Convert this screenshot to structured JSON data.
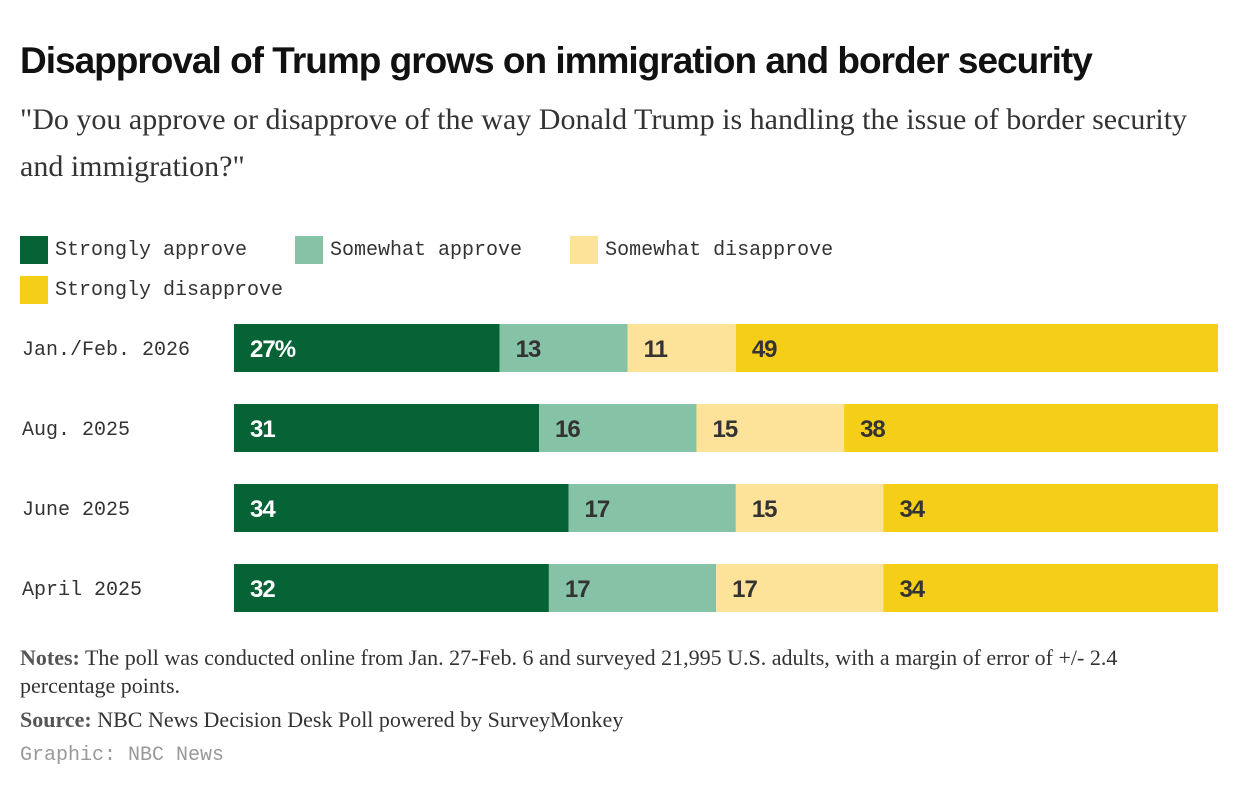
{
  "title": "Disapproval of Trump grows on immigration and border security",
  "subtitle": "\"Do you approve or disapprove of the way Donald Trump is handling the issue of border security and immigration?\"",
  "notes_label": "Notes:",
  "notes": "The poll was conducted online from Jan. 27-Feb. 6 and surveyed 21,995 U.S. adults, with a margin of error of +/- 2.4 percentage points.",
  "source_label": "Source:",
  "source": "NBC News Decision Desk Poll powered by SurveyMonkey",
  "credit": "Graphic: NBC News",
  "chart_data": {
    "type": "bar",
    "orientation": "horizontal-stacked",
    "categories": [
      "Jan./Feb. 2026",
      "Aug. 2025",
      "June 2025",
      "April 2025"
    ],
    "series": [
      {
        "name": "Strongly approve",
        "color": "#066336",
        "values": [
          27,
          31,
          34,
          32
        ]
      },
      {
        "name": "Somewhat approve",
        "color": "#86c2a5",
        "values": [
          13,
          16,
          17,
          17
        ]
      },
      {
        "name": "Somewhat disapprove",
        "color": "#fde39a",
        "values": [
          11,
          15,
          15,
          17
        ]
      },
      {
        "name": "Strongly disapprove",
        "color": "#f5cf17",
        "values": [
          49,
          38,
          34,
          34
        ]
      }
    ],
    "first_label_suffix": "%",
    "xlim": [
      0,
      100
    ],
    "legend": "top-left",
    "grid": false
  }
}
